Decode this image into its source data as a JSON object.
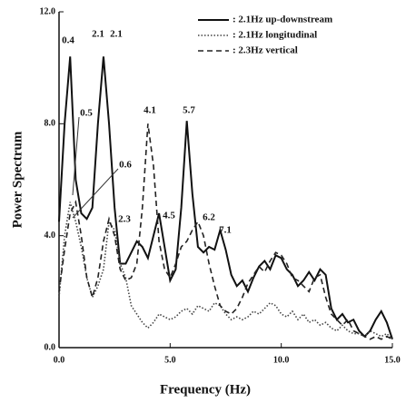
{
  "chart_data": {
    "type": "line",
    "xlabel": "Frequency (Hz)",
    "ylabel": "Power Spectrum",
    "x": [
      0,
      0.25,
      0.5,
      0.75,
      1,
      1.25,
      1.5,
      1.75,
      2,
      2.25,
      2.5,
      2.75,
      3,
      3.25,
      3.5,
      3.75,
      4,
      4.25,
      4.5,
      4.75,
      5,
      5.25,
      5.5,
      5.75,
      6,
      6.25,
      6.5,
      6.75,
      7,
      7.25,
      7.5,
      7.75,
      8,
      8.25,
      8.5,
      8.75,
      9,
      9.25,
      9.5,
      9.75,
      10,
      10.25,
      10.5,
      10.75,
      11,
      11.25,
      11.5,
      11.75,
      12,
      12.25,
      12.5,
      12.75,
      13,
      13.25,
      13.5,
      13.75,
      14,
      14.25,
      14.5,
      14.75,
      15
    ],
    "series": [
      {
        "name": ": 2.1Hz up-downstream",
        "color": "#111111",
        "dash": "solid",
        "values": [
          4.5,
          8,
          10.4,
          6,
          4.8,
          4.6,
          5,
          8,
          10.4,
          8,
          5,
          3,
          3,
          3.4,
          3.8,
          3.6,
          3.2,
          4,
          4.8,
          3.6,
          2.4,
          2.8,
          5,
          8.1,
          5.5,
          3.6,
          3.4,
          3.6,
          3.5,
          4.2,
          3.5,
          2.6,
          2.2,
          2.4,
          2,
          2.5,
          2.9,
          3.1,
          2.8,
          3.3,
          3.2,
          2.8,
          2.6,
          2.2,
          2.4,
          2.7,
          2.4,
          2.8,
          2.6,
          1.4,
          1,
          1.2,
          0.9,
          1,
          0.6,
          0.4,
          0.6,
          1,
          1.3,
          0.9,
          0.3
        ]
      },
      {
        "name": ": 2.1Hz longitudinal",
        "color": "#444444",
        "dash": "dotted",
        "values": [
          1.8,
          4,
          5.2,
          4.5,
          3.6,
          2.5,
          1.8,
          2.2,
          2.8,
          4.5,
          4.2,
          3,
          2.5,
          1.5,
          1.2,
          0.9,
          0.7,
          0.9,
          1.2,
          1.1,
          1,
          1.1,
          1.3,
          1.4,
          1.2,
          1.5,
          1.4,
          1.3,
          1.6,
          1.5,
          1.2,
          1,
          1.1,
          1,
          1.1,
          1.3,
          1.2,
          1.4,
          1.6,
          1.5,
          1.2,
          1.1,
          1.3,
          1,
          1.2,
          0.9,
          1,
          0.8,
          0.9,
          0.7,
          0.6,
          0.8,
          0.6,
          0.5,
          0.5,
          0.4,
          0.6,
          0.5,
          0.4,
          0.5,
          0.3
        ]
      },
      {
        "name": ": 2.3Hz vertical",
        "color": "#222222",
        "dash": "dashed",
        "values": [
          2,
          3.5,
          4.8,
          5.2,
          4,
          2.5,
          1.8,
          2.5,
          3.8,
          4.6,
          4,
          2.8,
          2.4,
          2.5,
          3,
          5,
          8,
          6.5,
          3.8,
          2.8,
          2.5,
          3,
          3.6,
          3.8,
          4.2,
          4.5,
          4,
          3,
          2.2,
          1.5,
          1.3,
          1.2,
          1.4,
          1.8,
          2.3,
          2.6,
          2.9,
          2.7,
          3.1,
          3.4,
          3.3,
          3,
          2.5,
          2.4,
          2.2,
          2,
          2.5,
          2.6,
          1.8,
          1.2,
          1,
          0.8,
          1,
          0.6,
          0.5,
          0.4,
          0.3,
          0.4,
          0.3,
          0.4,
          0.3
        ]
      }
    ],
    "annotations": [
      "0.4",
      "2.1",
      "2.1",
      "0.5",
      "0.6",
      "4.1",
      "5.7",
      "4.5",
      "6.2",
      "2.3",
      "7.1"
    ],
    "xlim": [
      0,
      15
    ],
    "xticks": [
      {
        "value": 0,
        "label": "0.0"
      },
      {
        "value": 5,
        "label": "5.0"
      },
      {
        "value": 10,
        "label": "10.0"
      },
      {
        "value": 15,
        "label": "15.0"
      }
    ],
    "ylim": [
      0,
      12
    ],
    "yticks": [
      {
        "value": 0,
        "label": "0.0"
      },
      {
        "value": 4,
        "label": "4.0"
      },
      {
        "value": 8,
        "label": "8.0"
      },
      {
        "value": 12,
        "label": "12.0"
      }
    ],
    "legend": "upper right",
    "grid": false
  }
}
